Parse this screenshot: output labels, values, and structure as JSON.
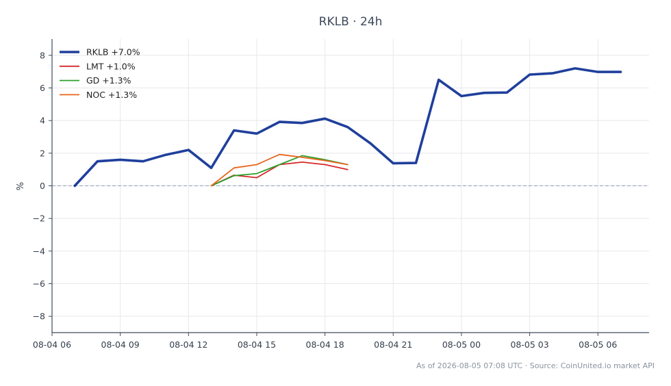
{
  "chart_data": {
    "type": "line",
    "title": "RKLB · 24h",
    "xlabel": "",
    "ylabel": "%",
    "footer": "As of 2026-08-05 07:08 UTC · Source: CoinUnited.io market API",
    "x_ticks": [
      "08-04 06",
      "08-04 09",
      "08-04 12",
      "08-04 15",
      "08-04 18",
      "08-04 21",
      "08-05 00",
      "08-05 03",
      "08-05 06"
    ],
    "y_ticks": [
      "8",
      "6",
      "4",
      "2",
      "0",
      "−2",
      "−4",
      "−6",
      "−8"
    ],
    "xlim": [
      "08-04 06:00",
      "08-05 08:15"
    ],
    "ylim": [
      -9,
      9
    ],
    "grid": true,
    "zero_line": true,
    "legend_position": "top-left",
    "series": [
      {
        "name": "RKLB +7.0%",
        "color": "#1f3f9c",
        "emphasis": true,
        "points": [
          [
            "08-04 07:00",
            0.0
          ],
          [
            "08-04 08:00",
            1.5
          ],
          [
            "08-04 09:00",
            1.6
          ],
          [
            "08-04 10:00",
            1.5
          ],
          [
            "08-04 11:00",
            1.9
          ],
          [
            "08-04 12:00",
            2.2
          ],
          [
            "08-04 13:00",
            1.1
          ],
          [
            "08-04 14:00",
            3.4
          ],
          [
            "08-04 15:00",
            3.2
          ],
          [
            "08-04 16:00",
            3.92
          ],
          [
            "08-04 17:00",
            3.85
          ],
          [
            "08-04 18:00",
            4.12
          ],
          [
            "08-04 19:00",
            3.6
          ],
          [
            "08-04 20:00",
            2.6
          ],
          [
            "08-04 21:00",
            1.38
          ],
          [
            "08-04 22:00",
            1.4
          ],
          [
            "08-04 23:00",
            6.5
          ],
          [
            "08-05 00:00",
            5.5
          ],
          [
            "08-05 01:00",
            5.7
          ],
          [
            "08-05 02:00",
            5.72
          ],
          [
            "08-05 03:00",
            6.82
          ],
          [
            "08-05 04:00",
            6.9
          ],
          [
            "08-05 05:00",
            7.2
          ],
          [
            "08-05 06:00",
            6.98
          ],
          [
            "08-05 07:00",
            6.98
          ]
        ]
      },
      {
        "name": "LMT +1.0%",
        "color": "#d62728",
        "emphasis": false,
        "points": [
          [
            "08-04 13:00",
            0.0
          ],
          [
            "08-04 14:00",
            0.65
          ],
          [
            "08-04 15:00",
            0.5
          ],
          [
            "08-04 16:00",
            1.3
          ],
          [
            "08-04 17:00",
            1.45
          ],
          [
            "08-04 18:00",
            1.3
          ],
          [
            "08-04 19:00",
            1.0
          ]
        ]
      },
      {
        "name": "GD +1.3%",
        "color": "#2ca02c",
        "emphasis": false,
        "points": [
          [
            "08-04 13:00",
            0.0
          ],
          [
            "08-04 14:00",
            0.62
          ],
          [
            "08-04 15:00",
            0.75
          ],
          [
            "08-04 16:00",
            1.3
          ],
          [
            "08-04 17:00",
            1.85
          ],
          [
            "08-04 18:00",
            1.6
          ],
          [
            "08-04 19:00",
            1.3
          ]
        ]
      },
      {
        "name": "NOC +1.3%",
        "color": "#e8651a",
        "emphasis": false,
        "points": [
          [
            "08-04 13:00",
            0.0
          ],
          [
            "08-04 14:00",
            1.1
          ],
          [
            "08-04 15:00",
            1.3
          ],
          [
            "08-04 16:00",
            1.92
          ],
          [
            "08-04 17:00",
            1.75
          ],
          [
            "08-04 18:00",
            1.55
          ],
          [
            "08-04 19:00",
            1.3
          ]
        ]
      }
    ]
  }
}
